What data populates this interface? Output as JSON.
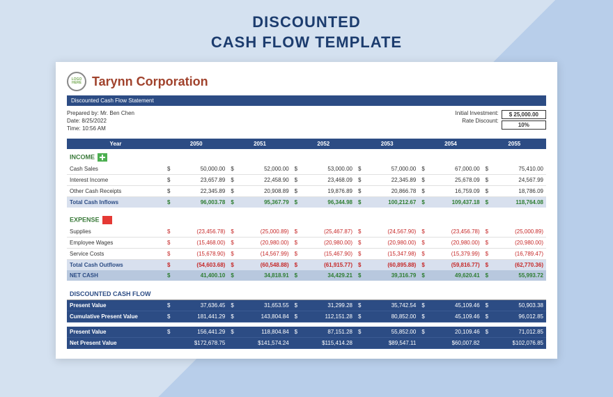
{
  "page_title_1": "DISCOUNTED",
  "page_title_2": "CASH FLOW TEMPLATE",
  "logo_text": "LOGO HERE",
  "company": "Tarynn Corporation",
  "subtitle": "Discounted Cash Flow Statement",
  "meta": {
    "prepared_by_label": "Prepared by:",
    "prepared_by": "Mr. Ben Chen",
    "date_label": "Date:",
    "date": "8/25/2022",
    "time_label": "Time:",
    "time": "10:56 AM",
    "initial_inv_label": "Initial Investment:",
    "initial_inv": "$   25,000.00",
    "rate_label": "Rate Discount:",
    "rate": "10%"
  },
  "year_label": "Year",
  "years": [
    "2050",
    "2051",
    "2052",
    "2053",
    "2054",
    "2055"
  ],
  "income_label": "INCOME",
  "income_rows": [
    {
      "label": "Cash Sales",
      "vals": [
        "50,000.00",
        "52,000.00",
        "53,000.00",
        "57,000.00",
        "67,000.00",
        "75,410.00"
      ]
    },
    {
      "label": "Interest Income",
      "vals": [
        "23,657.89",
        "22,458.90",
        "23,468.09",
        "22,345.89",
        "25,678.09",
        "24,567.99"
      ]
    },
    {
      "label": "Other Cash Receipts",
      "vals": [
        "22,345.89",
        "20,908.89",
        "19,876.89",
        "20,866.78",
        "16,759.09",
        "18,786.09"
      ]
    }
  ],
  "income_total": {
    "label": "Total Cash Inflows",
    "vals": [
      "96,003.78",
      "95,367.79",
      "96,344.98",
      "100,212.67",
      "109,437.18",
      "118,764.08"
    ]
  },
  "expense_label": "EXPENSE",
  "expense_rows": [
    {
      "label": "Supplies",
      "vals": [
        "(23,456.78)",
        "(25,000.89)",
        "(25,467.87)",
        "(24,567.90)",
        "(23,456.78)",
        "(25,000.89)"
      ]
    },
    {
      "label": "Employee Wages",
      "vals": [
        "(15,468.00)",
        "(20,980.00)",
        "(20,980.00)",
        "(20,980.00)",
        "(20,980.00)",
        "(20,980.00)"
      ]
    },
    {
      "label": "Service Costs",
      "vals": [
        "(15,678.90)",
        "(14,567.99)",
        "(15,467.90)",
        "(15,347.98)",
        "(15,379.99)",
        "(16,789.47)"
      ]
    }
  ],
  "expense_total": {
    "label": "Total Cash Outflows",
    "vals": [
      "(54,603.68)",
      "(60,548.88)",
      "(61,915.77)",
      "(60,895.88)",
      "(59,816.77)",
      "(62,770.36)"
    ]
  },
  "net_cash": {
    "label": "NET CASH",
    "vals": [
      "41,400.10",
      "34,818.91",
      "34,429.21",
      "39,316.79",
      "49,620.41",
      "55,993.72"
    ]
  },
  "dcf_label": "DISCOUNTED CASH FLOW",
  "dcf_rows": [
    {
      "label": "Present Value",
      "vals": [
        "37,636.45",
        "31,653.55",
        "31,299.28",
        "35,742.54",
        "45,109.46",
        "50,903.38"
      ]
    },
    {
      "label": "Cumulative Present Value",
      "vals": [
        "181,441.29",
        "143,804.84",
        "112,151.28",
        "80,852.00",
        "45,109.46",
        "96,012.85"
      ]
    }
  ],
  "dcf_rows2": [
    {
      "label": "Present Value",
      "vals": [
        "156,441.29",
        "118,804.84",
        "87,151.28",
        "55,852.00",
        "20,109.46",
        "71,012.85"
      ]
    },
    {
      "label": "Net Present Value",
      "vals": [
        "$172,678.75",
        "$141,574.24",
        "$115,414.28",
        "$89,547.11",
        "$60,007.82",
        "$102,076.85"
      ]
    }
  ],
  "colors": {
    "page_title": "#1c3c6e",
    "company": "#a0422c",
    "bar": "#2c4c84",
    "income": "#3a7a3a",
    "totals_bg": "#d8e0ee",
    "net_bg": "#b8c8de",
    "dcf_bg": "#2c4c84",
    "neg": "#c62828",
    "pos": "#2e7d32"
  }
}
